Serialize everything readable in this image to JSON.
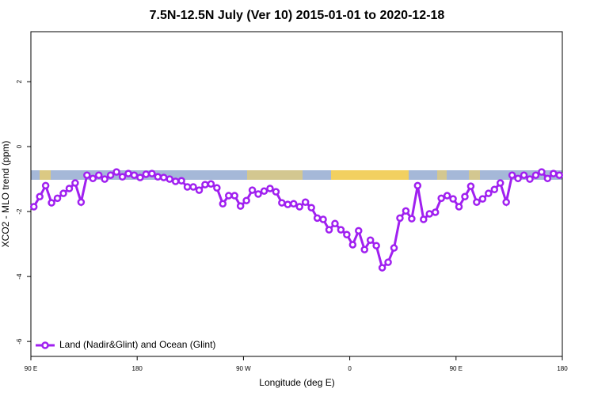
{
  "chart_data": {
    "type": "line",
    "title": "7.5N-12.5N July (Ver 10)   2015-01-01 to 2020-12-18",
    "x_label": "Longitude (deg E)",
    "y_label": "XCO2 - MLO trend (ppm)",
    "xlim": [
      90,
      540
    ],
    "xticks": [
      {
        "value": 90,
        "label": "90 E"
      },
      180,
      {
        "value": 270,
        "label": "90 W"
      },
      {
        "value": 360,
        "label": "0"
      },
      {
        "value": 450,
        "label": "90 E"
      },
      {
        "value": 540,
        "label": "180"
      }
    ],
    "ylim": [
      -6.46,
      3.54
    ],
    "yticks": [
      2,
      0,
      -2,
      -4,
      -6
    ],
    "legend_position": "bottom-left",
    "x": [
      92.5,
      97.5,
      102.5,
      107.5,
      112.5,
      117.5,
      122.5,
      127.5,
      132.5,
      137.5,
      142.5,
      147.5,
      152.5,
      157.5,
      162.5,
      167.5,
      172.5,
      177.5,
      182.5,
      187.5,
      192.5,
      197.5,
      202.5,
      207.5,
      212.5,
      217.5,
      222.5,
      227.5,
      232.5,
      237.5,
      242.5,
      247.5,
      252.5,
      257.5,
      262.5,
      267.5,
      272.5,
      277.5,
      282.5,
      287.5,
      292.5,
      297.5,
      302.5,
      307.5,
      312.5,
      317.5,
      322.5,
      327.5,
      332.5,
      337.5,
      342.5,
      347.5,
      352.5,
      357.5,
      362.5,
      367.5,
      372.5,
      377.5,
      382.5,
      387.5,
      392.5,
      397.5,
      402.5,
      407.5,
      412.5,
      417.5,
      422.5,
      427.5,
      432.5,
      437.5,
      442.5,
      447.5,
      452.5,
      457.5,
      462.5,
      467.5,
      472.5,
      477.5,
      482.5,
      487.5,
      492.5,
      497.5,
      502.5,
      507.5,
      512.5,
      517.5,
      522.5,
      527.5,
      532.5,
      537.5
    ],
    "series": [
      {
        "name": "Land (Nadir&Glint) and Ocean (Glint)",
        "color": "#a020f0",
        "values": [
          -1.85,
          -1.54,
          -1.2,
          -1.73,
          -1.59,
          -1.44,
          -1.29,
          -1.12,
          -1.71,
          -0.88,
          -0.98,
          -0.88,
          -1.0,
          -0.88,
          -0.78,
          -0.93,
          -0.83,
          -0.88,
          -0.95,
          -0.85,
          -0.83,
          -0.93,
          -0.95,
          -1.0,
          -1.07,
          -1.05,
          -1.24,
          -1.24,
          -1.34,
          -1.17,
          -1.15,
          -1.27,
          -1.76,
          -1.51,
          -1.51,
          -1.83,
          -1.66,
          -1.34,
          -1.46,
          -1.37,
          -1.29,
          -1.39,
          -1.73,
          -1.78,
          -1.76,
          -1.85,
          -1.71,
          -1.88,
          -2.2,
          -2.24,
          -2.56,
          -2.37,
          -2.56,
          -2.71,
          -3.02,
          -2.59,
          -3.17,
          -2.88,
          -3.05,
          -3.73,
          -3.56,
          -3.12,
          -2.2,
          -1.98,
          -2.22,
          -1.2,
          -2.24,
          -2.07,
          -2.02,
          -1.59,
          -1.51,
          -1.61,
          -1.85,
          -1.54,
          -1.22,
          -1.71,
          -1.61,
          -1.44,
          -1.32,
          -1.12,
          -1.71,
          -0.88,
          -0.98,
          -0.88,
          -1.0,
          -0.88,
          -0.78,
          -0.98,
          -0.83,
          -0.88
        ]
      }
    ]
  }
}
